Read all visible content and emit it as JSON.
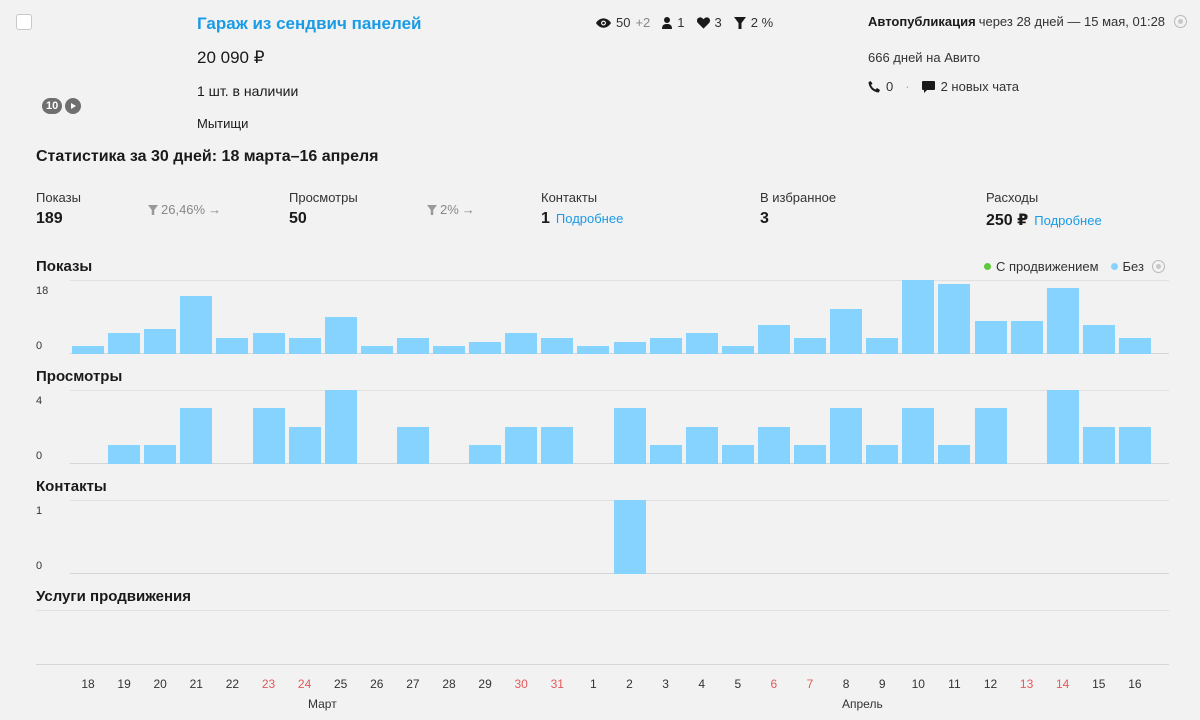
{
  "listing": {
    "title": "Гараж из сендвич панелей",
    "price": "20 090 ₽",
    "stock": "1 шт. в наличии",
    "city": "Мытищи",
    "photo_count": "10",
    "metrics": {
      "views": "50",
      "views_delta": "+2",
      "contacts": "1",
      "favorites": "3",
      "conversion": "2 %"
    },
    "autopublish_label": "Автопубликация",
    "autopublish_text": "через 28 дней — 15 мая, 01:28",
    "days_on_avito": "666 дней на Авито",
    "calls": "0",
    "new_chats": "2 новых чата"
  },
  "stats": {
    "title": "Статистика за 30 дней: 18 марта–16 апреля",
    "impressions": {
      "label": "Показы",
      "value": "189",
      "conversion": "26,46%"
    },
    "views": {
      "label": "Просмотры",
      "value": "50",
      "conversion": "2%"
    },
    "contacts": {
      "label": "Контакты",
      "value": "1",
      "link": "Подробнее"
    },
    "favorites": {
      "label": "В избранное",
      "value": "3"
    },
    "expenses": {
      "label": "Расходы",
      "value": "250 ₽",
      "link": "Подробнее"
    }
  },
  "legend": {
    "promo": "С продвижением",
    "no_promo": "Без"
  },
  "colors": {
    "bar": "#87d3ff",
    "promo": "#5cc93d",
    "link": "#1a9be6",
    "weekend": "#e45a5a"
  },
  "chart_data": [
    {
      "type": "bar",
      "title": "Показы",
      "ylim": [
        0,
        18
      ],
      "yticks": [
        "18",
        "0"
      ],
      "categories": [
        "18",
        "19",
        "20",
        "21",
        "22",
        "23",
        "24",
        "25",
        "26",
        "27",
        "28",
        "29",
        "30",
        "31",
        "1",
        "2",
        "3",
        "4",
        "5",
        "6",
        "7",
        "8",
        "9",
        "10",
        "11",
        "12",
        "13",
        "14",
        "15",
        "16"
      ],
      "values": [
        2,
        5,
        6,
        14,
        4,
        5,
        4,
        9,
        2,
        4,
        2,
        3,
        5,
        4,
        2,
        3,
        4,
        5,
        2,
        7,
        4,
        11,
        4,
        18,
        17,
        8,
        8,
        16,
        7,
        4
      ]
    },
    {
      "type": "bar",
      "title": "Просмотры",
      "ylim": [
        0,
        4
      ],
      "yticks": [
        "4",
        "0"
      ],
      "categories": [
        "18",
        "19",
        "20",
        "21",
        "22",
        "23",
        "24",
        "25",
        "26",
        "27",
        "28",
        "29",
        "30",
        "31",
        "1",
        "2",
        "3",
        "4",
        "5",
        "6",
        "7",
        "8",
        "9",
        "10",
        "11",
        "12",
        "13",
        "14",
        "15",
        "16"
      ],
      "values": [
        0,
        1,
        1,
        3,
        0,
        3,
        2,
        4,
        0,
        2,
        0,
        1,
        2,
        2,
        0,
        3,
        1,
        2,
        1,
        2,
        1,
        3,
        1,
        3,
        1,
        3,
        0,
        4,
        2,
        2
      ]
    },
    {
      "type": "bar",
      "title": "Контакты",
      "ylim": [
        0,
        1
      ],
      "yticks": [
        "1",
        "0"
      ],
      "categories": [
        "18",
        "19",
        "20",
        "21",
        "22",
        "23",
        "24",
        "25",
        "26",
        "27",
        "28",
        "29",
        "30",
        "31",
        "1",
        "2",
        "3",
        "4",
        "5",
        "6",
        "7",
        "8",
        "9",
        "10",
        "11",
        "12",
        "13",
        "14",
        "15",
        "16"
      ],
      "values": [
        0,
        0,
        0,
        0,
        0,
        0,
        0,
        0,
        0,
        0,
        0,
        0,
        0,
        0,
        0,
        1,
        0,
        0,
        0,
        0,
        0,
        0,
        0,
        0,
        0,
        0,
        0,
        0,
        0,
        0
      ]
    }
  ],
  "promo_section_title": "Услуги продвижения",
  "days": [
    "18",
    "19",
    "20",
    "21",
    "22",
    "23",
    "24",
    "25",
    "26",
    "27",
    "28",
    "29",
    "30",
    "31",
    "1",
    "2",
    "3",
    "4",
    "5",
    "6",
    "7",
    "8",
    "9",
    "10",
    "11",
    "12",
    "13",
    "14",
    "15",
    "16"
  ],
  "weekend_days": [
    "23",
    "24",
    "30",
    "31",
    "6",
    "7",
    "13",
    "14"
  ],
  "months": {
    "march": "Март",
    "april": "Апрель"
  }
}
